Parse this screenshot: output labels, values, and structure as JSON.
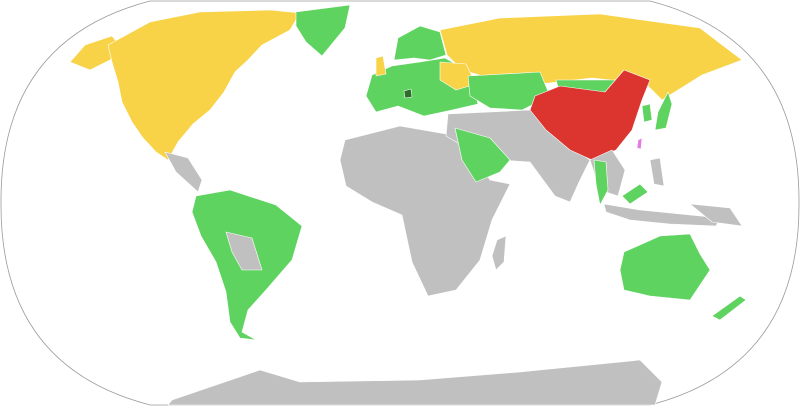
{
  "map": {
    "projection": "world-robinson",
    "colors": {
      "ocean": "#ffffff",
      "outline": "#9a9a9a",
      "red": "#dc3530",
      "yellow": "#f8d347",
      "green": "#5fd35f",
      "dark_green": "#2a6e2a",
      "pink": "#e27ce2",
      "gray": "#c0c0c0"
    },
    "regions": [
      {
        "id": "alaska",
        "category": "yellow"
      },
      {
        "id": "north-america",
        "category": "yellow"
      },
      {
        "id": "greenland",
        "category": "green"
      },
      {
        "id": "central-america",
        "category": "gray"
      },
      {
        "id": "south-america",
        "category": "green"
      },
      {
        "id": "bolivia-paraguay",
        "category": "gray"
      },
      {
        "id": "africa",
        "category": "gray"
      },
      {
        "id": "madagascar",
        "category": "gray"
      },
      {
        "id": "europe",
        "category": "green"
      },
      {
        "id": "scandinavia",
        "category": "green"
      },
      {
        "id": "united-kingdom",
        "category": "yellow"
      },
      {
        "id": "balkans-spot",
        "category": "dark_green"
      },
      {
        "id": "russia",
        "category": "yellow"
      },
      {
        "id": "ukraine-belarus",
        "category": "yellow"
      },
      {
        "id": "central-asia",
        "category": "green"
      },
      {
        "id": "mongolia",
        "category": "green"
      },
      {
        "id": "middle-east-south-asia",
        "category": "gray"
      },
      {
        "id": "saudi-arabia",
        "category": "green"
      },
      {
        "id": "china",
        "category": "red"
      },
      {
        "id": "taiwan",
        "category": "pink"
      },
      {
        "id": "korea",
        "category": "green"
      },
      {
        "id": "japan",
        "category": "green"
      },
      {
        "id": "thailand",
        "category": "green"
      },
      {
        "id": "indochina",
        "category": "gray"
      },
      {
        "id": "malaysia",
        "category": "green"
      },
      {
        "id": "indonesia",
        "category": "gray"
      },
      {
        "id": "philippines",
        "category": "gray"
      },
      {
        "id": "new-guinea",
        "category": "gray"
      },
      {
        "id": "australia",
        "category": "green"
      },
      {
        "id": "new-zealand",
        "category": "green"
      },
      {
        "id": "antarctica",
        "category": "gray"
      }
    ]
  }
}
